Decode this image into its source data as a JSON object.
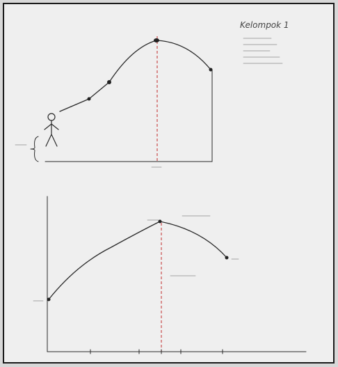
{
  "header": {
    "title": "Kelompok 1"
  }
}
